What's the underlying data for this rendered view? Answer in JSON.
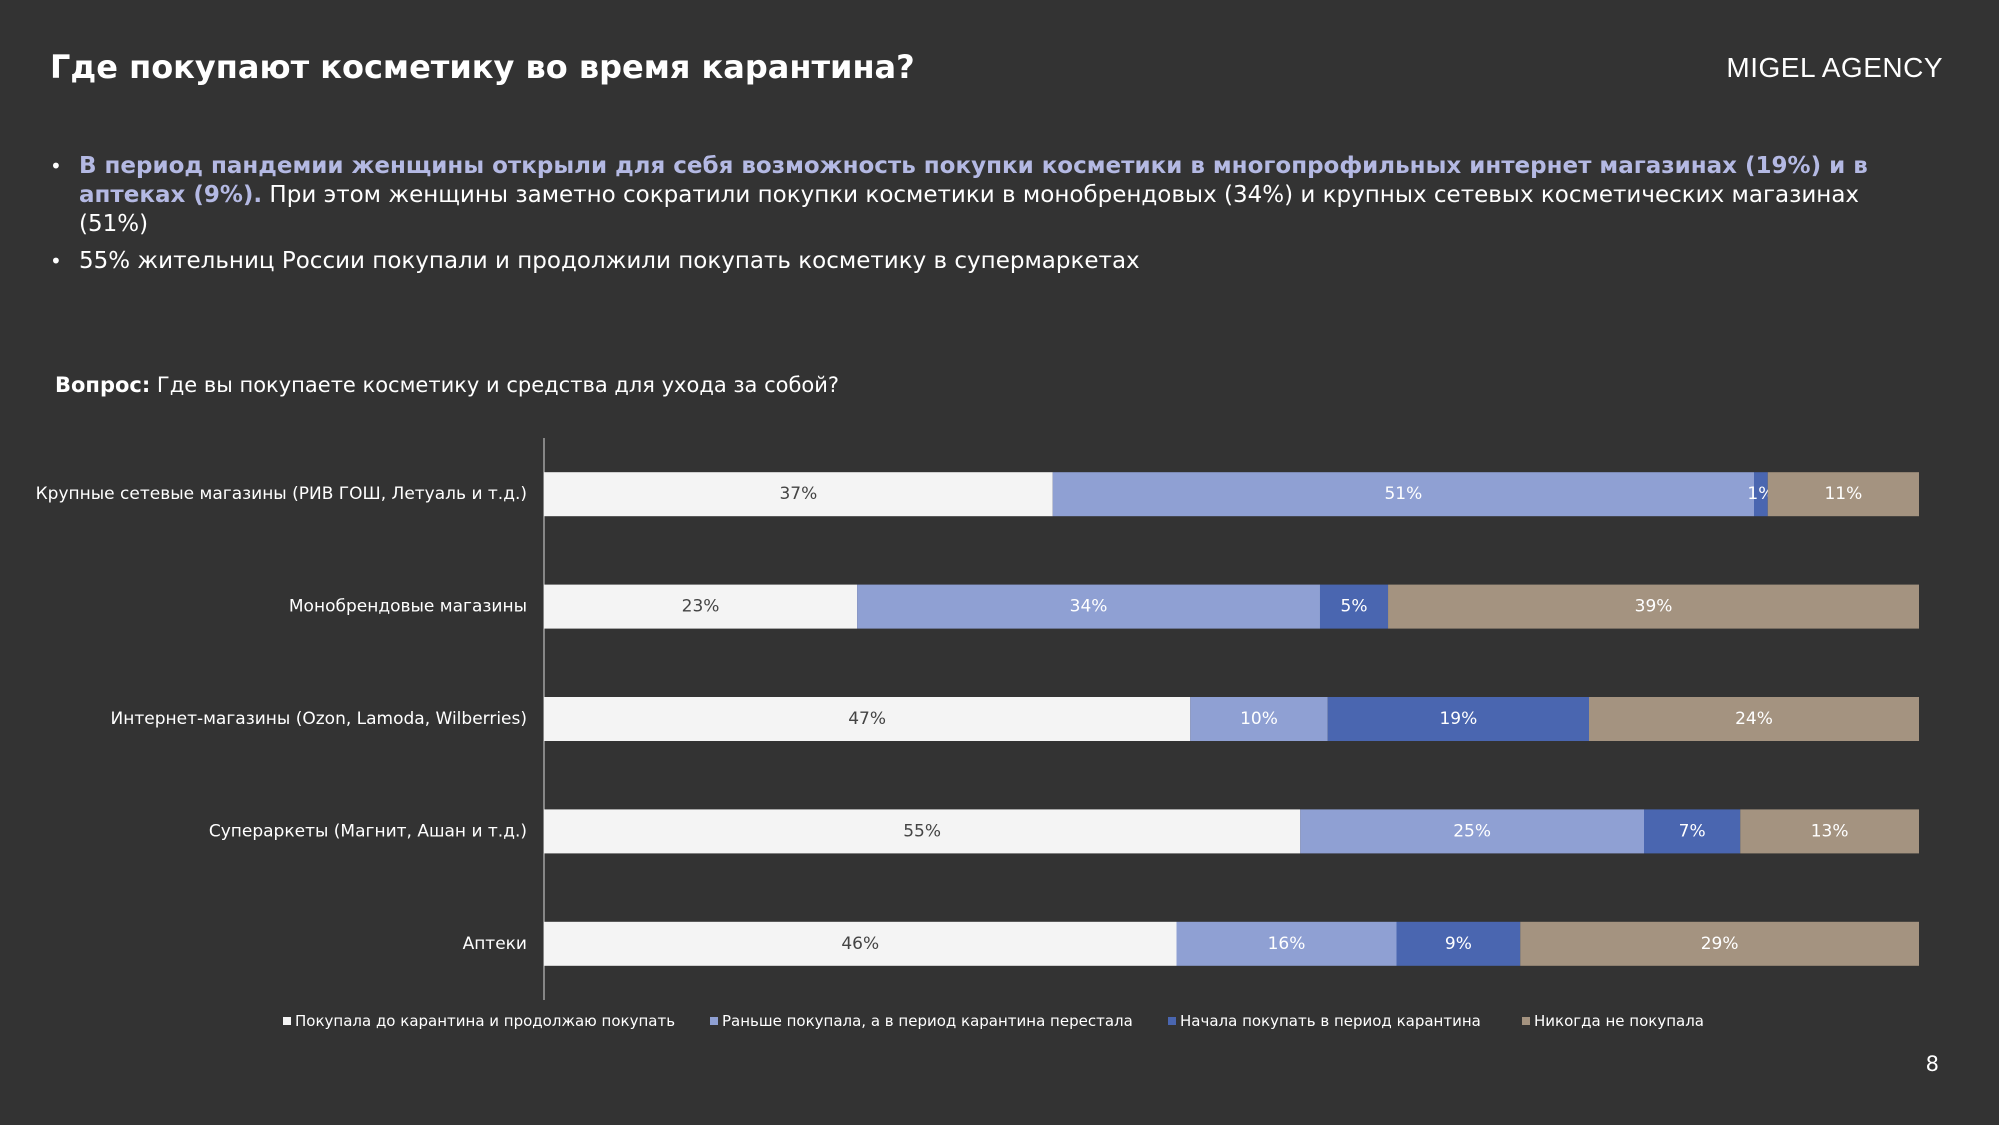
{
  "slide": {
    "title": "Где покупают косметику во время карантина?",
    "brand": "MIGEL AGENCY",
    "page_number": "8",
    "bullets": [
      {
        "highlight": "В период пандемии женщины открыли для себя возможность покупки косметики в многопрофильных интернет магазинах (19%) и в аптеках (9%).",
        "text": " При этом женщины заметно сократили покупки косметики в монобрендовых (34%) и крупных сетевых косметических магазинах (51%)"
      },
      {
        "highlight": "",
        "text": "55% жительниц России покупали и продолжили покупать косметику в супермаркетах"
      }
    ],
    "question_label": "Вопрос:",
    "question_text": " Где вы покупаете косметику и средства для ухода за собой?"
  },
  "chart_data": {
    "type": "bar",
    "orientation": "horizontal",
    "stacked": true,
    "categories": [
      "Крупные сетевые магазины (РИВ ГОШ, Летуаль и т.д.)",
      "Монобрендовые магазины",
      "Интернет-магазины (Ozon, Lamoda, Wilberries)",
      "Супераркеты (Магнит, Ашан и т.д.)",
      "Аптеки"
    ],
    "series": [
      {
        "name": "Покупала до карантина и продолжаю покупать",
        "values": [
          37,
          23,
          47,
          55,
          46
        ],
        "labels": [
          "37%",
          "23%",
          "47%",
          "55%",
          "46%"
        ],
        "color": "#f4f4f4",
        "label_color": "#444444"
      },
      {
        "name": "Раньше покупала, а в период карантина перестала",
        "values": [
          51,
          34,
          10,
          25,
          16
        ],
        "labels": [
          "51%",
          "34%",
          "10%",
          "25%",
          "16%"
        ],
        "color": "#8fa0d3",
        "label_color": "#ffffff"
      },
      {
        "name": "Начала покупать в период карантина",
        "values": [
          1,
          5,
          19,
          7,
          9
        ],
        "labels": [
          "1%",
          "5%",
          "19%",
          "7%",
          "9%"
        ],
        "color": "#4a66b0",
        "label_color": "#ffffff"
      },
      {
        "name": "Никогда не покупала",
        "values": [
          11,
          39,
          24,
          13,
          29
        ],
        "labels": [
          "11%",
          "39%",
          "24%",
          "13%",
          "29%"
        ],
        "color": "#a49380",
        "label_color": "#ffffff"
      }
    ],
    "legend_position": "bottom",
    "grid": false,
    "xlim": [
      0,
      100
    ]
  }
}
